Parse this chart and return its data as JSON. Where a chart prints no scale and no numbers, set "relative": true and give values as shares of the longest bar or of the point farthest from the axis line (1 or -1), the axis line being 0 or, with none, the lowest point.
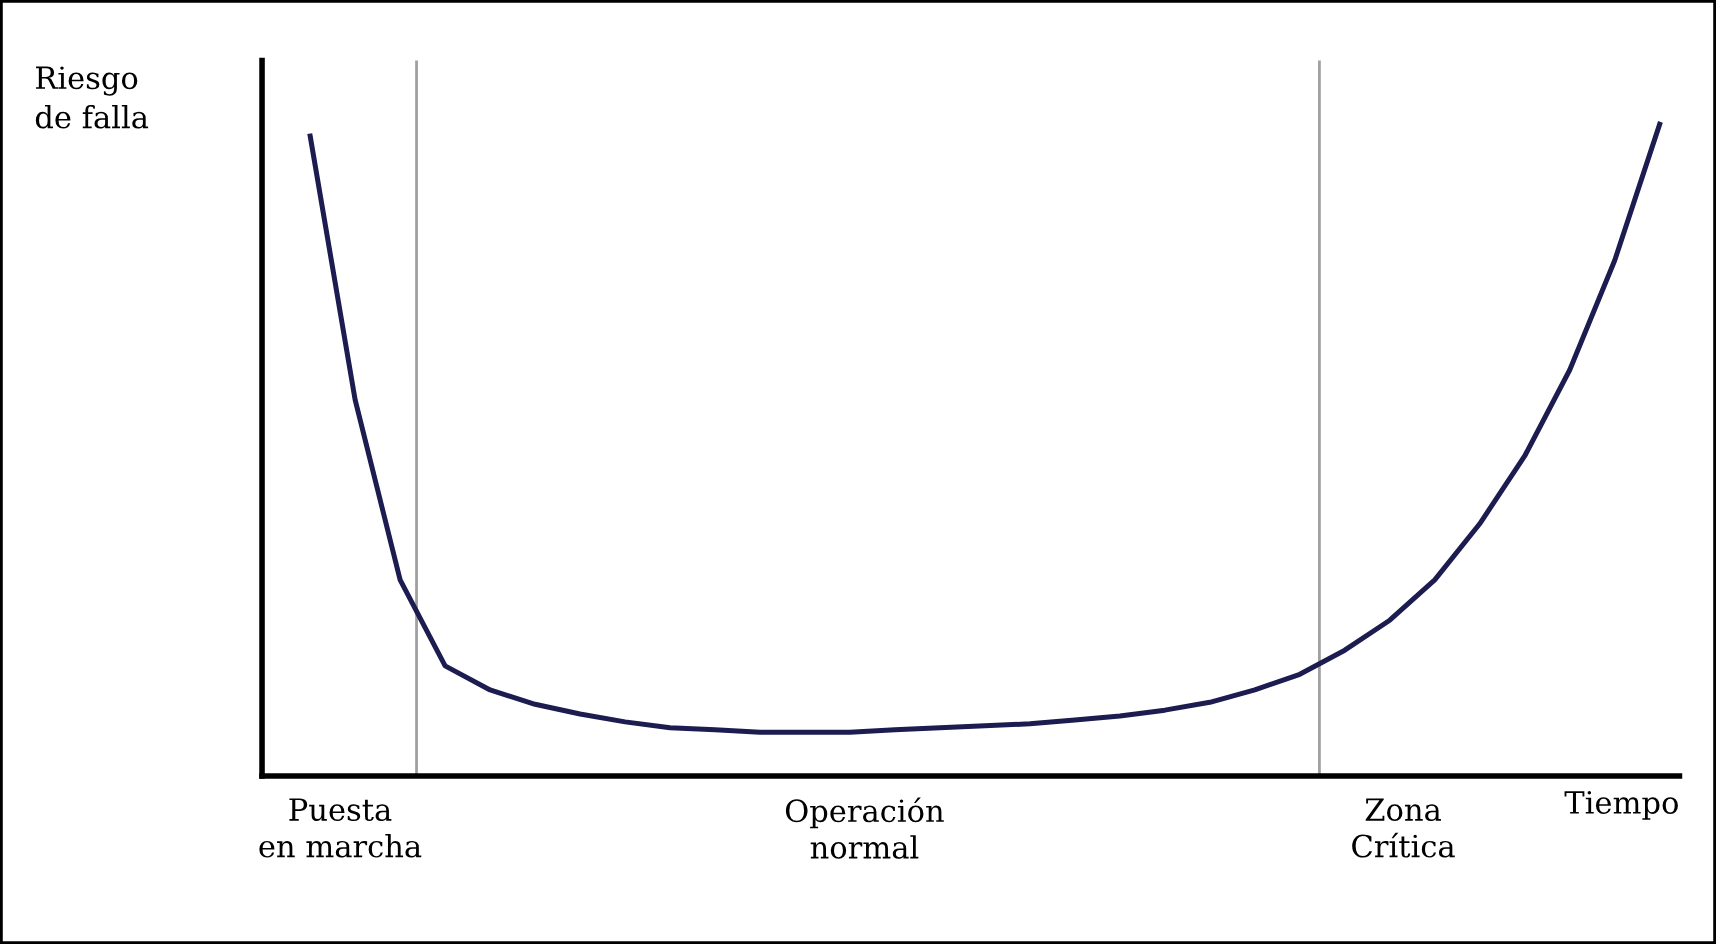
{
  "chart_data": {
    "type": "line",
    "relative": true,
    "xlabel": "Tiempo",
    "ylabel": "Riesgo\nde falla",
    "categories": [
      null,
      null,
      null,
      null,
      null,
      null,
      null,
      null,
      null,
      null,
      null,
      null,
      null,
      null,
      null,
      null,
      null,
      null,
      null,
      null,
      null,
      null,
      null,
      null,
      null,
      null,
      null,
      null,
      null,
      null,
      null
    ],
    "series": [
      {
        "color": "#1c1c50",
        "values": [
          0.982,
          0.577,
          0.301,
          0.169,
          0.132,
          0.11,
          0.095,
          0.083,
          0.074,
          0.071,
          0.067,
          0.067,
          0.067,
          0.071,
          0.074,
          0.077,
          0.08,
          0.086,
          0.092,
          0.101,
          0.113,
          0.132,
          0.156,
          0.193,
          0.239,
          0.301,
          0.387,
          0.491,
          0.623,
          0.791,
          1.0
        ]
      }
    ],
    "annotations": [
      "Puesta\nen marcha",
      "Operación\nnormal",
      "Zona\nCrítica"
    ],
    "marker": "none",
    "line_style": "solid"
  }
}
